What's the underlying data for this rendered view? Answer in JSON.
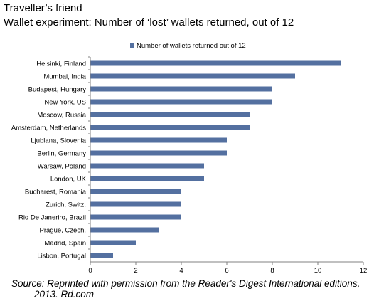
{
  "title": "Traveller’s friend",
  "subtitle": "Wallet experiment: Number of ‘lost’ wallets returned, out of 12",
  "source_line1": "Source: Reprinted with permission from the Reader's Digest International editions,",
  "source_line2": "2013. Rd.com",
  "colors": {
    "bar": "#5470a0",
    "axis": "#808080"
  },
  "chart_data": {
    "type": "bar",
    "orientation": "horizontal",
    "title": "Wallet experiment: Number of ‘lost’ wallets returned, out of 12",
    "xlabel": "",
    "ylabel": "",
    "legend_position": "top",
    "grid": false,
    "xlim": [
      0,
      12
    ],
    "xticks": [
      0,
      2,
      4,
      6,
      8,
      10,
      12
    ],
    "categories": [
      "Helsinki, Finland",
      "Mumbai, India",
      "Budapest, Hungary",
      "New York, US",
      "Moscow, Russia",
      "Amsterdam, Netherlands",
      "Ljublana, Slovenia",
      "Berlin, Germany",
      "Warsaw, Poland",
      "London, UK",
      "Bucharest, Romania",
      "Zurich, Switz.",
      "Rio De Janeriro, Brazil",
      "Prague, Czech.",
      "Madrid, Spain",
      "Lisbon, Portugal"
    ],
    "series": [
      {
        "name": "Number of wallets returned out of 12",
        "values": [
          11,
          9,
          8,
          8,
          7,
          7,
          6,
          6,
          5,
          5,
          4,
          4,
          4,
          3,
          2,
          1
        ]
      }
    ]
  }
}
